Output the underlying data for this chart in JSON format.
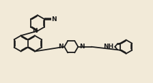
{
  "bg_color": "#f2ead8",
  "bond_color": "#1a1a1a",
  "bond_width": 1.3,
  "text_color": "#1a1a1a",
  "font_size": 6.5,
  "fig_width": 2.24,
  "fig_height": 1.22,
  "dpi": 100,
  "xlim": [
    0,
    11.5
  ],
  "ylim": [
    0,
    6.0
  ]
}
